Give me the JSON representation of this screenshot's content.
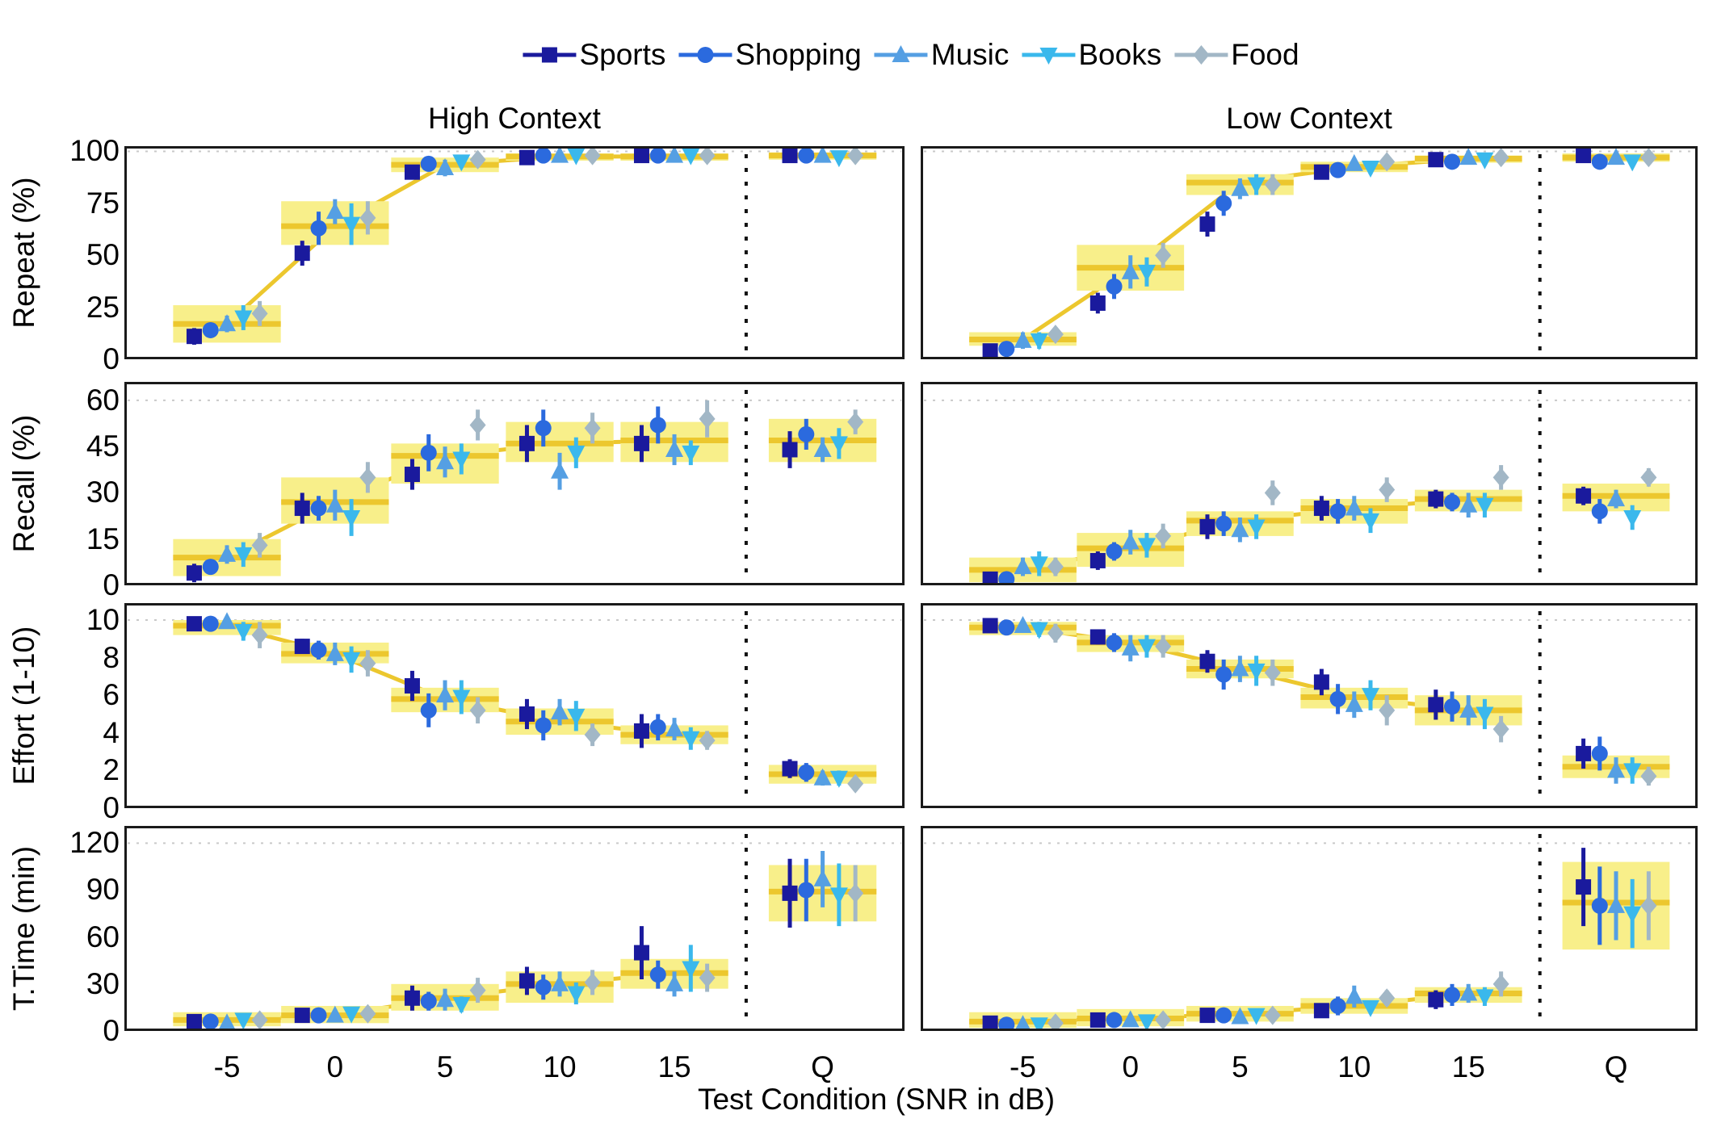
{
  "figure": {
    "xlabel": "Test Condition (SNR in dB)",
    "columns": [
      "High Context",
      "Low Context"
    ]
  },
  "chart_data": {
    "type": "line",
    "legend_position": "top",
    "xlabel": "Test Condition (SNR in dB)",
    "x_categories": [
      "-5",
      "0",
      "5",
      "10",
      "15",
      "Q"
    ],
    "columns": [
      "High Context",
      "Low Context"
    ],
    "series_names": [
      "Sports",
      "Shopping",
      "Music",
      "Books",
      "Food"
    ],
    "series_markers": [
      "square",
      "circle",
      "triangle-up",
      "triangle-down",
      "diamond"
    ],
    "series_colors": [
      "#1a1a9d",
      "#2b6ade",
      "#559fe3",
      "#3ab8ec",
      "#a2b7c6"
    ],
    "colors": {
      "band_fill": "#f8ef8a",
      "band_line": "#ecc72e",
      "panel_border": "#1a1a1a",
      "separator": "#111111",
      "grid_dots": "#c9c9c9",
      "text": "#000000"
    },
    "rows": [
      {
        "ylabel": "Repeat (%)",
        "ylim": [
          0,
          102.5
        ],
        "yticks": [
          0,
          25,
          50,
          75,
          100
        ]
      },
      {
        "ylabel": "Recall (%)",
        "ylim": [
          0,
          66
        ],
        "yticks": [
          0,
          15,
          30,
          45,
          60
        ]
      },
      {
        "ylabel": "Effort (1-10)",
        "ylim": [
          0,
          10.9
        ],
        "yticks": [
          0,
          2,
          4,
          6,
          8,
          10
        ]
      },
      {
        "ylabel": "T.Time (min)",
        "ylim": [
          0,
          131
        ],
        "yticks": [
          0,
          30,
          60,
          90,
          120
        ]
      }
    ],
    "panels": [
      {
        "id": "repeat-high-context",
        "row": 0,
        "col": 0,
        "band": {
          "low": [
            8,
            55,
            90,
            95.5,
            95.5,
            96
          ],
          "high": [
            26,
            76,
            97,
            99,
            99,
            99.5
          ],
          "mean": [
            17,
            64,
            93.5,
            97.5,
            97.5,
            98
          ]
        },
        "series": [
          {
            "name": "Sports",
            "values": [
              11,
              51,
              90,
              97,
              98,
              98
            ],
            "err": [
              4,
              6,
              3,
              1.5,
              1,
              1
            ]
          },
          {
            "name": "Shopping",
            "values": [
              14,
              63,
              94,
              98,
              98,
              98
            ],
            "err": [
              3,
              8,
              2,
              1,
              1,
              1
            ]
          },
          {
            "name": "Music",
            "values": [
              17,
              71,
              92,
              98,
              98,
              98
            ],
            "err": [
              4,
              6,
              4,
              1,
              1,
              1
            ]
          },
          {
            "name": "Books",
            "values": [
              20,
              65,
              95,
              98,
              98,
              97
            ],
            "err": [
              6,
              10,
              3,
              1,
              1,
              1.5
            ]
          },
          {
            "name": "Food",
            "values": [
              22,
              68,
              96,
              98,
              98,
              98
            ],
            "err": [
              6,
              8,
              2,
              1,
              1,
              1
            ]
          }
        ]
      },
      {
        "id": "repeat-low-context",
        "row": 0,
        "col": 1,
        "band": {
          "low": [
            6.5,
            33,
            79,
            90,
            94.5,
            95
          ],
          "high": [
            13,
            55,
            89,
            95,
            98,
            99
          ],
          "mean": [
            9.5,
            44,
            85,
            92.5,
            96.5,
            97
          ]
        },
        "series": [
          {
            "name": "Sports",
            "values": [
              4,
              27,
              65,
              90,
              96,
              98
            ],
            "err": [
              2,
              5,
              6,
              3,
              2,
              1
            ]
          },
          {
            "name": "Shopping",
            "values": [
              5,
              35,
              75,
              91,
              95,
              95
            ],
            "err": [
              2,
              6,
              6,
              3,
              2,
              2
            ]
          },
          {
            "name": "Music",
            "values": [
              9,
              42,
              82,
              94,
              97,
              97
            ],
            "err": [
              4,
              8,
              5,
              2,
              1.5,
              1
            ]
          },
          {
            "name": "Books",
            "values": [
              9,
              42,
              84,
              92,
              96,
              95
            ],
            "err": [
              4,
              7,
              5,
              3,
              2,
              2
            ]
          },
          {
            "name": "Food",
            "values": [
              12,
              50,
              84,
              95,
              97,
              97
            ],
            "err": [
              3,
              6,
              5,
              2,
              1.5,
              1
            ]
          }
        ]
      },
      {
        "id": "recall-high-context",
        "row": 1,
        "col": 0,
        "band": {
          "low": [
            3,
            20,
            33,
            40,
            40,
            40
          ],
          "high": [
            15,
            35,
            46,
            53,
            53,
            54
          ],
          "mean": [
            9,
            27,
            42,
            46,
            47,
            47
          ]
        },
        "series": [
          {
            "name": "Sports",
            "values": [
              4,
              25,
              36,
              46,
              46,
              44
            ],
            "err": [
              3,
              5,
              5,
              6,
              6,
              6
            ]
          },
          {
            "name": "Shopping",
            "values": [
              6,
              25,
              43,
              51,
              52,
              49
            ],
            "err": [
              2,
              4,
              6,
              6,
              6,
              5
            ]
          },
          {
            "name": "Music",
            "values": [
              10,
              26,
              40,
              37,
              44,
              44
            ],
            "err": [
              3,
              5,
              5,
              6,
              5,
              4
            ]
          },
          {
            "name": "Books",
            "values": [
              10,
              22,
              41,
              43,
              43,
              46
            ],
            "err": [
              4,
              6,
              5,
              5,
              4,
              5
            ]
          },
          {
            "name": "Food",
            "values": [
              13,
              35,
              52,
              51,
              54,
              53
            ],
            "err": [
              4,
              5,
              5,
              5,
              6,
              4
            ]
          }
        ]
      },
      {
        "id": "recall-low-context",
        "row": 1,
        "col": 1,
        "band": {
          "low": [
            1,
            6,
            16,
            20,
            24,
            24
          ],
          "high": [
            9,
            17,
            24,
            28,
            31,
            33
          ],
          "mean": [
            5,
            12,
            21,
            25,
            28,
            29
          ]
        },
        "series": [
          {
            "name": "Sports",
            "values": [
              2,
              8,
              19,
              25,
              28,
              29
            ],
            "err": [
              1.5,
              3,
              4,
              4,
              3,
              3
            ]
          },
          {
            "name": "Shopping",
            "values": [
              2,
              11,
              20,
              24,
              27,
              24
            ],
            "err": [
              1.5,
              3,
              4,
              4,
              3,
              4
            ]
          },
          {
            "name": "Music",
            "values": [
              6,
              14,
              18,
              25,
              26,
              28
            ],
            "err": [
              3,
              4,
              4,
              4,
              4,
              3
            ]
          },
          {
            "name": "Books",
            "values": [
              7,
              13,
              19,
              21,
              26,
              22
            ],
            "err": [
              4,
              4,
              4,
              4,
              4,
              4
            ]
          },
          {
            "name": "Food",
            "values": [
              6,
              16,
              30,
              31,
              35,
              35
            ],
            "err": [
              3,
              4,
              4,
              4,
              4,
              3
            ]
          }
        ]
      },
      {
        "id": "effort-high-context",
        "row": 2,
        "col": 0,
        "band": {
          "low": [
            9.2,
            7.7,
            5.1,
            3.9,
            3.4,
            1.3
          ],
          "high": [
            10,
            8.8,
            6.4,
            5.3,
            4.4,
            2.3
          ],
          "mean": [
            9.7,
            8.2,
            5.8,
            4.6,
            3.9,
            1.8
          ]
        },
        "series": [
          {
            "name": "Sports",
            "values": [
              9.8,
              8.6,
              6.5,
              5.0,
              4.1,
              2.1
            ],
            "err": [
              0.3,
              0.4,
              0.8,
              0.8,
              0.9,
              0.5
            ]
          },
          {
            "name": "Shopping",
            "values": [
              9.8,
              8.4,
              5.2,
              4.4,
              4.3,
              1.9
            ],
            "err": [
              0.3,
              0.5,
              0.9,
              0.8,
              0.7,
              0.5
            ]
          },
          {
            "name": "Music",
            "values": [
              9.9,
              8.2,
              6.0,
              5.1,
              4.2,
              1.6
            ],
            "err": [
              0.2,
              0.6,
              0.8,
              0.7,
              0.6,
              0.4
            ]
          },
          {
            "name": "Books",
            "values": [
              9.4,
              7.9,
              5.9,
              4.9,
              3.7,
              1.6
            ],
            "err": [
              0.5,
              0.7,
              0.9,
              0.8,
              0.6,
              0.4
            ]
          },
          {
            "name": "Food",
            "values": [
              9.2,
              7.7,
              5.2,
              3.9,
              3.6,
              1.3
            ],
            "err": [
              0.7,
              0.7,
              0.7,
              0.6,
              0.5,
              0.4
            ]
          }
        ]
      },
      {
        "id": "effort-low-context",
        "row": 2,
        "col": 1,
        "band": {
          "low": [
            9.2,
            8.3,
            6.9,
            5.3,
            4.4,
            1.6
          ],
          "high": [
            9.9,
            9.2,
            7.9,
            6.4,
            6.0,
            2.8
          ],
          "mean": [
            9.6,
            8.8,
            7.4,
            5.9,
            5.2,
            2.2
          ]
        },
        "series": [
          {
            "name": "Sports",
            "values": [
              9.7,
              9.1,
              7.8,
              6.7,
              5.5,
              2.9
            ],
            "err": [
              0.3,
              0.4,
              0.6,
              0.7,
              0.8,
              0.8
            ]
          },
          {
            "name": "Shopping",
            "values": [
              9.6,
              8.8,
              7.1,
              5.8,
              5.4,
              2.9
            ],
            "err": [
              0.3,
              0.5,
              0.8,
              0.8,
              0.8,
              0.9
            ]
          },
          {
            "name": "Music",
            "values": [
              9.7,
              8.5,
              7.4,
              5.5,
              5.2,
              2.0
            ],
            "err": [
              0.3,
              0.7,
              0.7,
              0.7,
              0.8,
              0.7
            ]
          },
          {
            "name": "Books",
            "values": [
              9.5,
              8.6,
              7.3,
              6.0,
              5.0,
              2.0
            ],
            "err": [
              0.4,
              0.6,
              0.8,
              0.8,
              0.8,
              0.7
            ]
          },
          {
            "name": "Food",
            "values": [
              9.3,
              8.6,
              7.2,
              5.2,
              4.2,
              1.7
            ],
            "err": [
              0.5,
              0.6,
              0.7,
              0.8,
              0.7,
              0.5
            ]
          }
        ]
      },
      {
        "id": "ttime-high-context",
        "row": 3,
        "col": 0,
        "band": {
          "low": [
            3,
            5,
            13,
            18,
            27,
            70
          ],
          "high": [
            12,
            16,
            30,
            38,
            46,
            106
          ],
          "mean": [
            7,
            10,
            21,
            30,
            37,
            89
          ]
        },
        "series": [
          {
            "name": "Sports",
            "values": [
              6,
              10,
              21,
              32,
              50,
              88
            ],
            "err": [
              3,
              4,
              8,
              9,
              17,
              22
            ]
          },
          {
            "name": "Shopping",
            "values": [
              6,
              10,
              19,
              28,
              36,
              90
            ],
            "err": [
              2,
              3,
              6,
              8,
              9,
              20
            ]
          },
          {
            "name": "Music",
            "values": [
              5,
              10,
              20,
              30,
              30,
              97
            ],
            "err": [
              2,
              3,
              7,
              8,
              8,
              18
            ]
          },
          {
            "name": "Books",
            "values": [
              7,
              11,
              17,
              24,
              40,
              87
            ],
            "err": [
              3,
              3,
              5,
              7,
              15,
              20
            ]
          },
          {
            "name": "Food",
            "values": [
              7,
              11,
              26,
              31,
              34,
              88
            ],
            "err": [
              3,
              4,
              8,
              8,
              9,
              18
            ]
          }
        ]
      },
      {
        "id": "ttime-low-context",
        "row": 3,
        "col": 1,
        "band": {
          "low": [
            2,
            3,
            6,
            11,
            18,
            52
          ],
          "high": [
            12,
            14,
            16,
            21,
            28,
            108
          ],
          "mean": [
            6,
            8,
            11,
            16,
            24,
            82
          ]
        },
        "series": [
          {
            "name": "Sports",
            "values": [
              5,
              7,
              10,
              13,
              20,
              92
            ],
            "err": [
              2,
              3,
              3,
              4,
              6,
              25
            ]
          },
          {
            "name": "Shopping",
            "values": [
              4,
              7,
              10,
              16,
              23,
              80
            ],
            "err": [
              2,
              2,
              3,
              6,
              7,
              25
            ]
          },
          {
            "name": "Music",
            "values": [
              4,
              7,
              9,
              22,
              24,
              80
            ],
            "err": [
              2,
              2,
              3,
              7,
              6,
              22
            ]
          },
          {
            "name": "Books",
            "values": [
              4,
              6,
              10,
              15,
              22,
              75
            ],
            "err": [
              2,
              2,
              3,
              4,
              6,
              22
            ]
          },
          {
            "name": "Food",
            "values": [
              5,
              7,
              10,
              21,
              30,
              80
            ],
            "err": [
              2,
              2,
              3,
              5,
              8,
              22
            ]
          }
        ]
      }
    ]
  }
}
